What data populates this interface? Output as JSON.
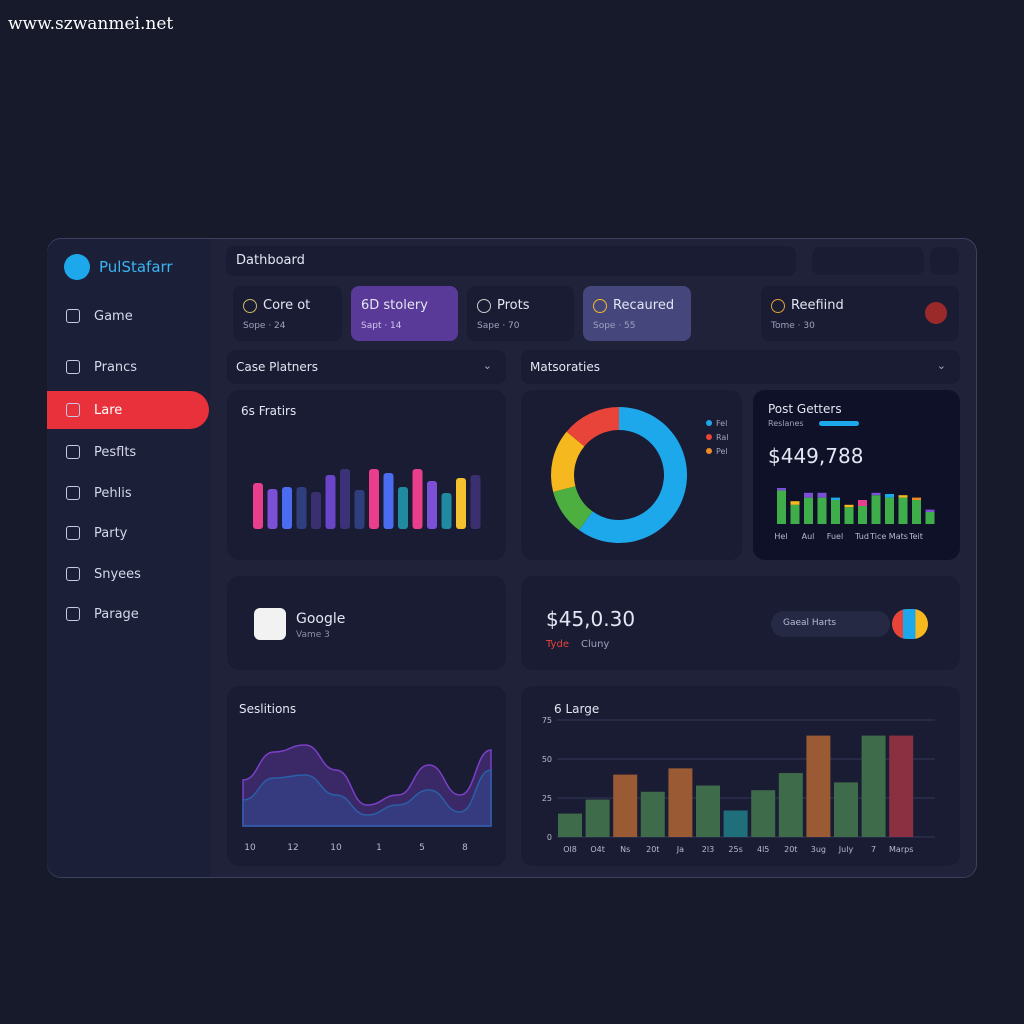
{
  "watermark": "www.szwanmei.net",
  "brand": "PulStafarr",
  "nav": [
    "Game",
    "Prancs",
    "Lare",
    "Pesflts",
    "Pehlis",
    "Party",
    "Snyees",
    "Parage"
  ],
  "active_nav": 2,
  "header": {
    "title": "Dathboard"
  },
  "tabs": [
    {
      "title": "Core ot",
      "sub": "Sope · 24"
    },
    {
      "title": "6D stolery",
      "sub": "Sapt · 14"
    },
    {
      "title": "Prots",
      "sub": "Sape · 70"
    },
    {
      "title": "Recaured",
      "sub": "Sope · 55"
    },
    {
      "title": "Reefiind",
      "sub": "Tome · 30"
    }
  ],
  "filters": [
    "Case Platners",
    "Matsoraties"
  ],
  "bars_card": {
    "title": "6s Fratirs",
    "values": [
      46,
      40,
      42,
      42,
      37,
      54,
      60,
      39,
      60,
      56,
      42,
      60,
      48,
      36,
      51,
      54
    ],
    "colors": [
      "#e83e8c",
      "#7b4fd6",
      "#4a6cf0",
      "#2f3f7e",
      "#3a3070",
      "#6a45c8",
      "#3b3278",
      "#2f3f7e",
      "#e83e8c",
      "#4a6cf0",
      "#1f8aa0",
      "#e83e8c",
      "#7b4fd6",
      "#1f8aa0",
      "#f5c12e",
      "#3a3070"
    ]
  },
  "donut_card": {
    "values": [
      60,
      11,
      15,
      14
    ],
    "colors": [
      "#1ea8ec",
      "#4caf3f",
      "#f6b81f",
      "#e8443a"
    ],
    "legend": [
      {
        "label": "Fel",
        "color": "#1ea8ec"
      },
      {
        "label": "Ral",
        "color": "#e8443a"
      },
      {
        "label": "Pel",
        "color": "#f08a24"
      }
    ]
  },
  "post_card": {
    "title": "Post Getters",
    "subtitle": "Reslanes",
    "amount": "$449,788",
    "values": [
      28,
      16,
      22,
      22,
      20,
      14,
      15,
      24,
      22,
      22,
      20,
      10
    ],
    "top_values": [
      2,
      3,
      4,
      4,
      2,
      2,
      5,
      2,
      3,
      2,
      2,
      2
    ],
    "color": "#3fae4a",
    "top_colors": [
      "#7b4fd6",
      "#f6b81f",
      "#7b4fd6",
      "#7b4fd6",
      "#1ea8ec",
      "#f6b81f",
      "#e83e8c",
      "#7b4fd6",
      "#1ea8ec",
      "#f6b81f",
      "#f08a24",
      "#7b4fd6"
    ],
    "categories": [
      "Hel",
      null,
      "Aul",
      null,
      "Fuel",
      null,
      "Tud",
      null,
      "Tice Mats",
      null,
      "Teit",
      null
    ]
  },
  "profile_card": {
    "name": "Google",
    "sub": "Vame 3"
  },
  "amount_card": {
    "amount": "$45,0.30",
    "labels": [
      "Tyde",
      "Cluny"
    ],
    "pill": "Gaeal Harts"
  },
  "area_card": {
    "title": "Seslitions",
    "x_labels": [
      "10",
      "12",
      "10",
      "1",
      "5",
      "8"
    ],
    "series": [
      {
        "color": "#7b3fc8",
        "values": [
          51,
          79,
          86,
          61,
          26,
          36,
          66,
          36,
          81
        ]
      },
      {
        "color": "#2b5fa8",
        "values": [
          31,
          53,
          56,
          36,
          16,
          26,
          41,
          19,
          61
        ]
      }
    ]
  },
  "large_card": {
    "title": "6 Large",
    "ylim": [
      0,
      75
    ],
    "yticks": [
      0,
      25,
      50,
      75
    ],
    "categories": [
      "Ol8",
      "O4t",
      "Ns",
      "20t",
      "Ja",
      "2l3",
      "25s",
      "4l5",
      "20t",
      "3ug",
      "July",
      "7",
      "Marps"
    ],
    "values": [
      15,
      24,
      40,
      29,
      44,
      33,
      17,
      30,
      41,
      65,
      35,
      65,
      65
    ],
    "colors": [
      "#3e6b4a",
      "#3e6b4a",
      "#9a5a34",
      "#3e6b4a",
      "#9a5a34",
      "#3e6b4a",
      "#1f6f7a",
      "#3e6b4a",
      "#3e6b4a",
      "#9a5a34",
      "#3e6b4a",
      "#3e6b4a",
      "#8a3040"
    ]
  }
}
